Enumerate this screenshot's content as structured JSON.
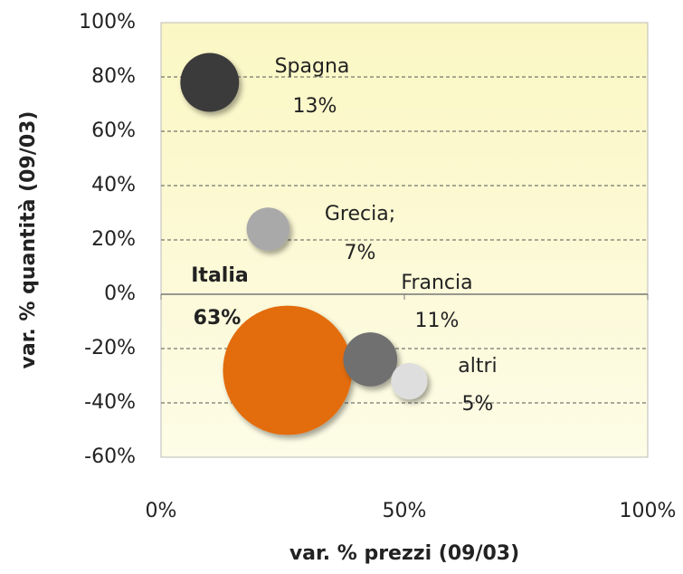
{
  "chart_data": {
    "type": "bubble",
    "x_label": "var. % prezzi (09/03)",
    "y_label": "var. % quantità (09/03)",
    "categories": [
      "Spagna",
      "Grecia;",
      "Italia",
      "Francia",
      "altri"
    ],
    "x": [
      10,
      22,
      26,
      43,
      51
    ],
    "values": [
      78,
      24,
      -28,
      -24,
      -32
    ],
    "sizes": [
      13,
      7,
      63,
      11,
      5
    ],
    "value_labels": [
      "13%",
      "7%",
      "63%",
      "11%",
      "5%"
    ],
    "colors": [
      "#3a3a3a",
      "#a9a9a9",
      "#e36c0a",
      "#6f6f6f",
      "#dedede"
    ],
    "xlim": [
      0,
      100
    ],
    "ylim": [
      -60,
      100
    ],
    "xticks": [
      {
        "value": 0,
        "label": "0%"
      },
      {
        "value": 50,
        "label": "50%"
      },
      {
        "value": 100,
        "label": "100%"
      }
    ],
    "yticks": [
      {
        "value": -60,
        "label": "-60%"
      },
      {
        "value": -40,
        "label": "-40%"
      },
      {
        "value": -20,
        "label": "-20%"
      },
      {
        "value": 0,
        "label": "0%"
      },
      {
        "value": 20,
        "label": "20%"
      },
      {
        "value": 40,
        "label": "40%"
      },
      {
        "value": 60,
        "label": "60%"
      },
      {
        "value": 80,
        "label": "80%"
      },
      {
        "value": 100,
        "label": "100%"
      }
    ],
    "grid": true
  }
}
